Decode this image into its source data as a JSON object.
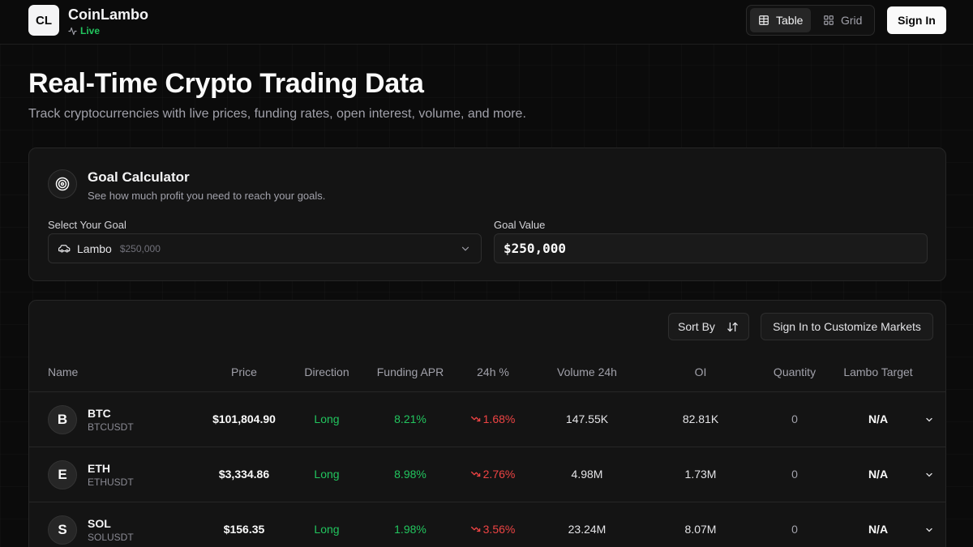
{
  "app": {
    "logo_text": "CL",
    "name": "CoinLambo",
    "status": "Live"
  },
  "header": {
    "view_options": [
      {
        "label": "Table",
        "icon": "table-icon",
        "active": true
      },
      {
        "label": "Grid",
        "icon": "grid-icon",
        "active": false
      }
    ],
    "sign_in_label": "Sign In"
  },
  "hero": {
    "title": "Real-Time Crypto Trading Data",
    "subtitle": "Track cryptocurrencies with live prices, funding rates, open interest, volume, and more."
  },
  "goal_calculator": {
    "title": "Goal Calculator",
    "description": "See how much profit you need to reach your goals.",
    "select_label": "Select Your Goal",
    "selected_goal": "Lambo",
    "selected_goal_price": "$250,000",
    "value_label": "Goal Value",
    "goal_value": "$250,000"
  },
  "markets": {
    "sort_label": "Sort By",
    "customize_label": "Sign In to Customize Markets",
    "columns": [
      "Name",
      "Price",
      "Direction",
      "Funding APR",
      "24h %",
      "Volume 24h",
      "OI",
      "Quantity",
      "Lambo Target"
    ],
    "rows": [
      {
        "initial": "B",
        "symbol": "BTC",
        "pair": "BTCUSDT",
        "price": "$101,804.90",
        "direction": "Long",
        "funding_apr": "8.21%",
        "change_24h": "1.68%",
        "volume_24h": "147.55K",
        "oi": "82.81K",
        "quantity": "0",
        "lambo_target": "N/A"
      },
      {
        "initial": "E",
        "symbol": "ETH",
        "pair": "ETHUSDT",
        "price": "$3,334.86",
        "direction": "Long",
        "funding_apr": "8.98%",
        "change_24h": "2.76%",
        "volume_24h": "4.98M",
        "oi": "1.73M",
        "quantity": "0",
        "lambo_target": "N/A"
      },
      {
        "initial": "S",
        "symbol": "SOL",
        "pair": "SOLUSDT",
        "price": "$156.35",
        "direction": "Long",
        "funding_apr": "1.98%",
        "change_24h": "3.56%",
        "volume_24h": "23.24M",
        "oi": "8.07M",
        "quantity": "0",
        "lambo_target": "N/A"
      }
    ]
  },
  "colors": {
    "positive": "#22c55e",
    "negative": "#ef4444",
    "background": "#0b0b0b",
    "card": "#141414"
  }
}
